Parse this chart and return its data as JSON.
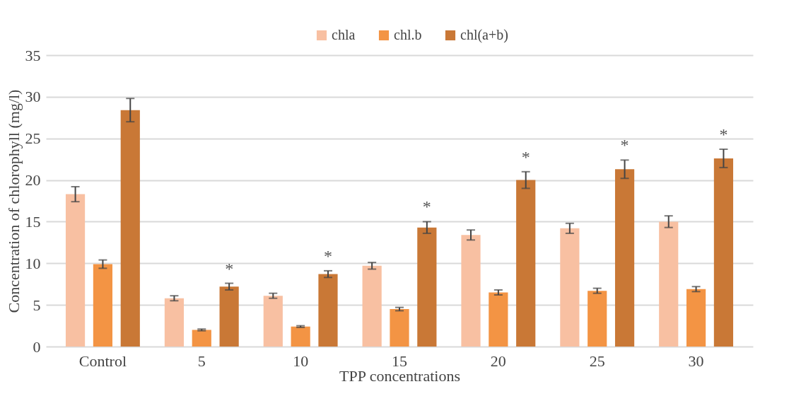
{
  "chart_data": {
    "type": "bar",
    "xlabel": "TPP concentrations",
    "ylabel": "Concentration of chlorophyll (mg/l)",
    "categories": [
      "Control",
      "5",
      "10",
      "15",
      "20",
      "25",
      "30"
    ],
    "series": [
      {
        "name": "chla",
        "color": "#f8c0a2",
        "values": [
          18.3,
          5.8,
          6.1,
          9.7,
          13.4,
          14.2,
          15.0
        ],
        "errors": [
          0.9,
          0.3,
          0.3,
          0.4,
          0.6,
          0.6,
          0.7
        ]
      },
      {
        "name": "chl.b",
        "color": "#f39444",
        "values": [
          9.9,
          2.0,
          2.4,
          4.5,
          6.5,
          6.7,
          6.9
        ],
        "errors": [
          0.5,
          0.1,
          0.1,
          0.2,
          0.3,
          0.3,
          0.3
        ]
      },
      {
        "name": "chl(a+b)",
        "color": "#c97836",
        "values": [
          28.4,
          7.2,
          8.7,
          14.3,
          20.0,
          21.3,
          22.6
        ],
        "errors": [
          1.4,
          0.4,
          0.4,
          0.7,
          1.0,
          1.1,
          1.1
        ],
        "value_labels": [
          null,
          "*",
          "*",
          "*",
          "*",
          "*",
          "*"
        ]
      }
    ],
    "ylim": [
      0,
      35
    ],
    "yticks": [
      0,
      5,
      10,
      15,
      20,
      25,
      30,
      35
    ],
    "grid": "y",
    "legend": "top"
  }
}
